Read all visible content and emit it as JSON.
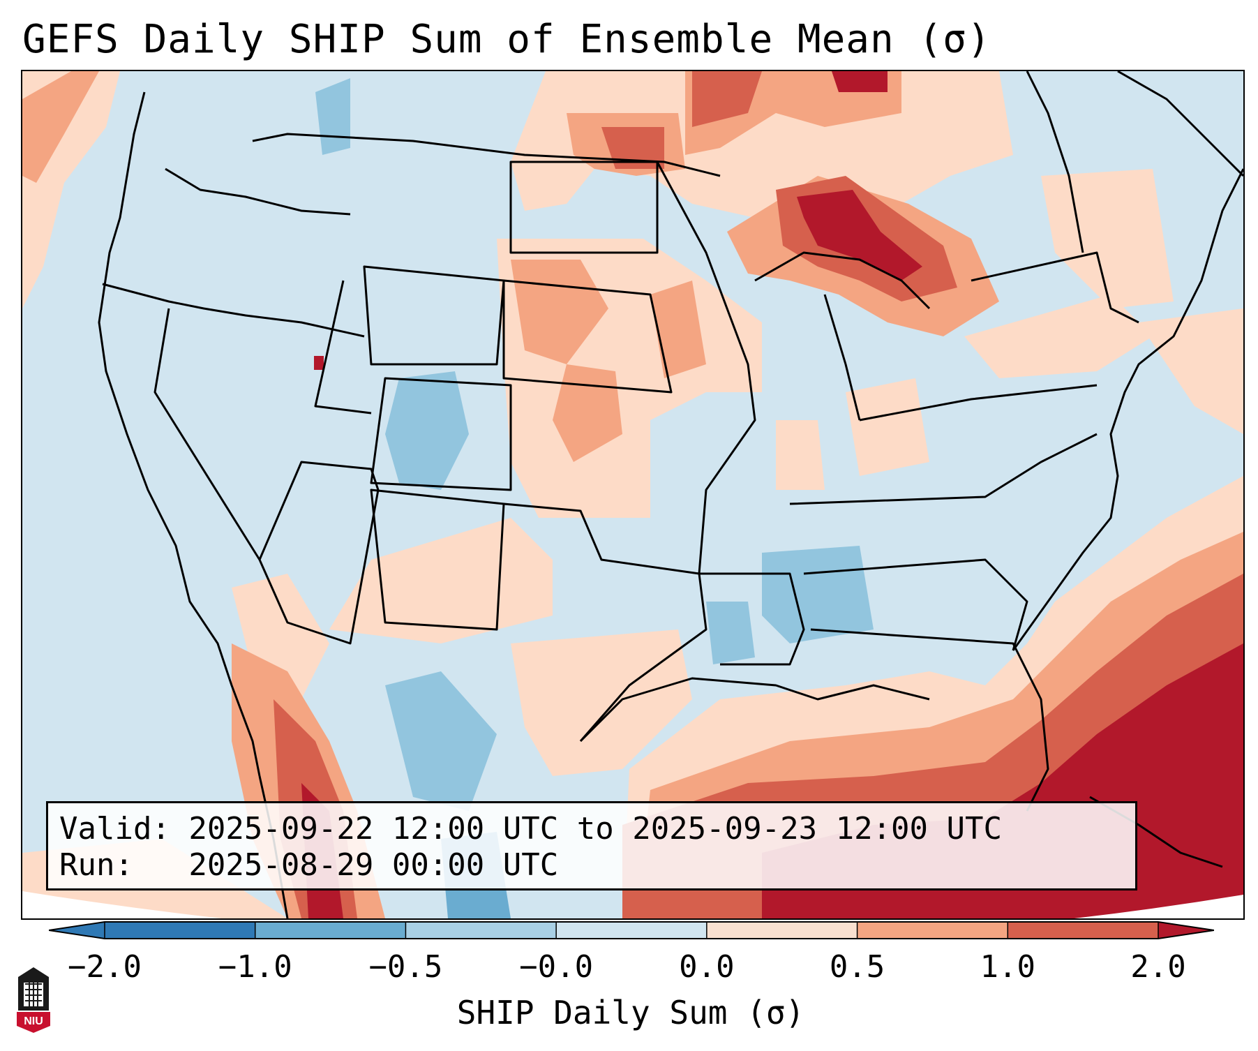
{
  "title": "GEFS Daily SHIP Sum of Ensemble Mean (σ)",
  "valid_line": "Valid: 2025-09-22 12:00 UTC to 2025-09-23 12:00 UTC",
  "run_line": "Run:   2025-08-29 00:00 UTC",
  "colorbar": {
    "label": "SHIP Daily Sum (σ)",
    "ticks": [
      "−2.0",
      "−1.0",
      "−0.5",
      "−0.0",
      "0.0",
      "0.5",
      "1.0",
      "2.0"
    ],
    "colors": [
      "#2f79b5",
      "#6aacd0",
      "#a9d0e5",
      "#d1e5f0",
      "#f9e0d0",
      "#f4a582",
      "#d6604d",
      "#b2182b"
    ],
    "extend": "both"
  },
  "logo": {
    "icon": "niu-logo-icon",
    "text": "NIU"
  },
  "map": {
    "projection": "Lambert conformal CONUS",
    "legend_placement": "bottom",
    "field_colors": {
      "strong_negative": "#4393c3",
      "negative": "#92c5de",
      "near_zero_negative": "#d1e5f0",
      "near_zero_positive": "#fddbc7",
      "positive": "#f4a582",
      "strong_positive": "#d6604d",
      "very_strong_positive": "#b2182b"
    }
  }
}
